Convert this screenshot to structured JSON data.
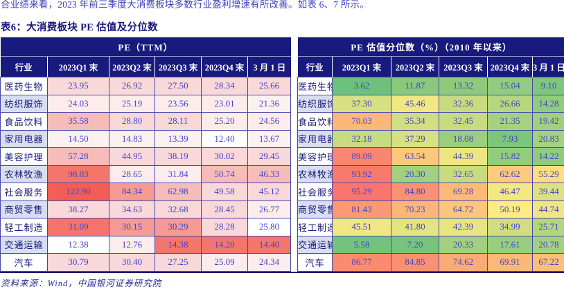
{
  "page": {
    "top_text": "合业绩来看，2023 年前三季度大消费板块多数行业盈利增速有所改善。如表 6、7 所示。",
    "table_title": "表6：大消费板块 PE 估值及分位数",
    "source_note": "资料来源：Wind，中国银河证券研究院"
  },
  "colors": {
    "header_bg": "#181a7d",
    "header_text": "#ffffff",
    "number_text": "#4444c6",
    "label_text": "#181a78",
    "border": "#4548a8",
    "row_label_alt_bg": "#d8ddf1",
    "pink_palette": {
      "w": "#fffefe",
      "p0": "#fcf1f1",
      "p1": "#fdecec",
      "p2": "#f9d8d9",
      "p3": "#f6bcba",
      "p4": "#f59b93",
      "p5": "#f4756b",
      "p6": "#f25e55"
    },
    "pctl_scale": {
      "min": "#63be7b",
      "mid": "#ffeb84",
      "max": "#f8696b"
    }
  },
  "chart_data": {
    "type": "table",
    "title": "表6：大消费板块 PE 估值及分位数",
    "columns": [
      "行业",
      "2023Q1 末",
      "2023Q2 末",
      "2023Q3 末",
      "2023Q4 末",
      "3 月 1 日"
    ],
    "industries": [
      "医药生物",
      "纺织服饰",
      "食品饮料",
      "家用电器",
      "美容护理",
      "农林牧渔",
      "社会服务",
      "商贸零售",
      "轻工制造",
      "交通运输",
      "汽车"
    ],
    "pe_ttm": {
      "group_title": "PE（TTM）",
      "rows": [
        [
          "23.95",
          "26.92",
          "27.50",
          "28.34",
          "25.66"
        ],
        [
          "24.03",
          "25.19",
          "23.56",
          "23.01",
          "21.36"
        ],
        [
          "35.58",
          "28.80",
          "28.11",
          "25.20",
          "24.56"
        ],
        [
          "14.50",
          "14.83",
          "13.39",
          "12.40",
          "13.67"
        ],
        [
          "57.28",
          "44.95",
          "38.19",
          "30.02",
          "29.45"
        ],
        [
          "98.03",
          "28.65",
          "31.84",
          "50.74",
          "46.33"
        ],
        [
          "122.90",
          "84.34",
          "62.98",
          "49.58",
          "45.12"
        ],
        [
          "38.27",
          "34.63",
          "32.68",
          "28.45",
          "26.77"
        ],
        [
          "31.09",
          "30.15",
          "30.29",
          "28.28",
          "25.80"
        ],
        [
          "12.38",
          "12.76",
          "14.38",
          "14.20",
          "14.40"
        ],
        [
          "30.79",
          "30.40",
          "27.25",
          "25.09",
          "24.34"
        ]
      ],
      "heat": [
        [
          "p2",
          "p2",
          "p2",
          "p2",
          "p2"
        ],
        [
          "p1",
          "p1",
          "p1",
          "p1",
          "p0"
        ],
        [
          "p3",
          "p2",
          "p2",
          "p1",
          "p1"
        ],
        [
          "p0",
          "p0",
          "p0",
          "w",
          "p0"
        ],
        [
          "p3",
          "p2",
          "p2",
          "p2",
          "p2"
        ],
        [
          "p5",
          "p1",
          "p1",
          "p3",
          "p3"
        ],
        [
          "p6",
          "p4",
          "p3",
          "p2",
          "p2"
        ],
        [
          "p2",
          "p2",
          "p2",
          "p2",
          "p1"
        ],
        [
          "p5",
          "p4",
          "p4",
          "p2",
          "w"
        ],
        [
          "w",
          "p1",
          "p5",
          "p5",
          "p5"
        ],
        [
          "p2",
          "p2",
          "p2",
          "p1",
          "p1"
        ]
      ]
    },
    "pe_percentile": {
      "group_title": "PE 估值分位数（%）（2010 年以来）",
      "rows": [
        [
          "3.62",
          "11.87",
          "13.32",
          "15.04",
          "9.10"
        ],
        [
          "37.30",
          "45.46",
          "32.36",
          "26.66",
          "14.28"
        ],
        [
          "70.03",
          "35.34",
          "32.45",
          "21.35",
          "19.42"
        ],
        [
          "32.18",
          "37.29",
          "18.08",
          "7.93",
          "20.83"
        ],
        [
          "89.09",
          "63.54",
          "44.39",
          "15.82",
          "14.22"
        ],
        [
          "93.92",
          "20.30",
          "32.65",
          "62.62",
          "55.29"
        ],
        [
          "95.29",
          "84.80",
          "69.28",
          "46.47",
          "39.44"
        ],
        [
          "81.43",
          "70.23",
          "64.72",
          "50.19",
          "44.74"
        ],
        [
          "45.51",
          "41.80",
          "42.39",
          "34.99",
          "25.71"
        ],
        [
          "5.58",
          "7.20",
          "20.33",
          "17.61",
          "20.78"
        ],
        [
          "86.77",
          "84.85",
          "74.62",
          "69.91",
          "67.22"
        ]
      ],
      "scale": {
        "range": [
          0,
          100
        ],
        "midpoint": 50
      }
    }
  }
}
